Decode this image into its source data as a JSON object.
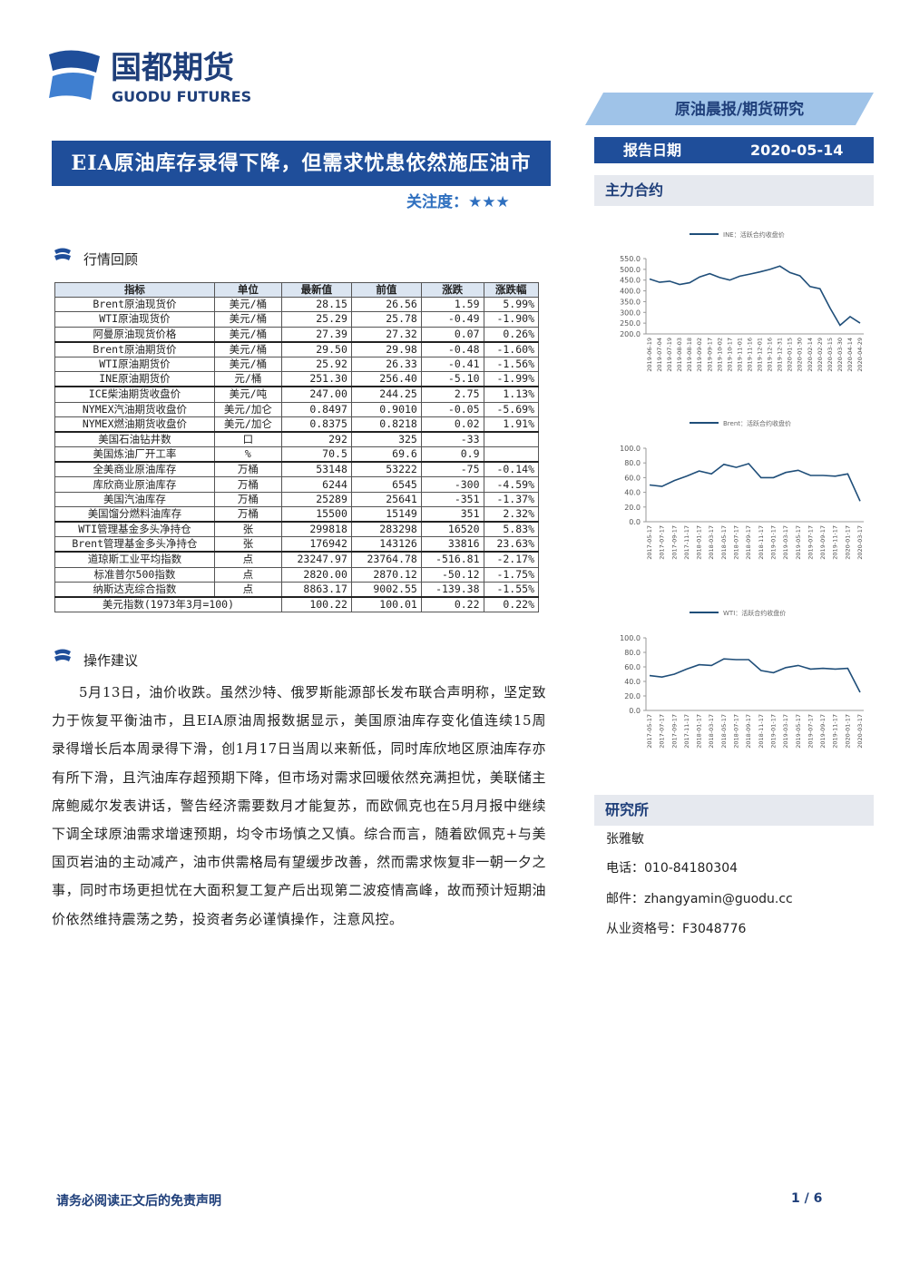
{
  "header": {
    "logo_cn": "国都期货",
    "logo_en": "GUODU FUTURES",
    "report_type": "原油晨报/期货研究",
    "date_label": "报告日期",
    "date": "2020-05-14"
  },
  "title": "EIA原油库存录得下降，但需求忧患依然施压油市",
  "attention": "关注度：★★★",
  "market_review": {
    "heading": "行情回顾",
    "table": {
      "columns": [
        "指标",
        "单位",
        "最新值",
        "前值",
        "涨跌",
        "涨跌幅"
      ],
      "rows": [
        [
          "Brent原油现货价",
          "美元/桶",
          "28.15",
          "26.56",
          "1.59",
          "5.99%"
        ],
        [
          "WTI原油现货价",
          "美元/桶",
          "25.29",
          "25.78",
          "-0.49",
          "-1.90%"
        ],
        [
          "阿曼原油现货价格",
          "美元/桶",
          "27.39",
          "27.32",
          "0.07",
          "0.26%"
        ],
        [
          "Brent原油期货价",
          "美元/桶",
          "29.50",
          "29.98",
          "-0.48",
          "-1.60%"
        ],
        [
          "WTI原油期货价",
          "美元/桶",
          "25.92",
          "26.33",
          "-0.41",
          "-1.56%"
        ],
        [
          "INE原油期货价",
          "元/桶",
          "251.30",
          "256.40",
          "-5.10",
          "-1.99%"
        ],
        [
          "ICE柴油期货收盘价",
          "美元/吨",
          "247.00",
          "244.25",
          "2.75",
          "1.13%"
        ],
        [
          "NYMEX汽油期货收盘价",
          "美元/加仑",
          "0.8497",
          "0.9010",
          "-0.05",
          "-5.69%"
        ],
        [
          "NYMEX燃油期货收盘价",
          "美元/加仑",
          "0.8375",
          "0.8218",
          "0.02",
          "1.91%"
        ],
        [
          "美国石油钻井数",
          "口",
          "292",
          "325",
          "-33",
          null
        ],
        [
          "美国炼油厂开工率",
          "%",
          "70.5",
          "69.6",
          "0.9",
          null
        ],
        [
          "全美商业原油库存",
          "万桶",
          "53148",
          "53222",
          "-75",
          "-0.14%"
        ],
        [
          "库欣商业原油库存",
          "万桶",
          "6244",
          "6545",
          "-300",
          "-4.59%"
        ],
        [
          "美国汽油库存",
          "万桶",
          "25289",
          "25641",
          "-351",
          "-1.37%"
        ],
        [
          "美国馏分燃料油库存",
          "万桶",
          "15500",
          "15149",
          "351",
          "2.32%"
        ],
        [
          "WTI管理基金多头净持仓",
          "张",
          "299818",
          "283298",
          "16520",
          "5.83%"
        ],
        [
          "Brent管理基金多头净持仓",
          "张",
          "176942",
          "143126",
          "33816",
          "23.63%"
        ],
        [
          "道琼斯工业平均指数",
          "点",
          "23247.97",
          "23764.78",
          "-516.81",
          "-2.17%"
        ],
        [
          "标准普尔500指数",
          "点",
          "2820.00",
          "2870.12",
          "-50.12",
          "-1.75%"
        ],
        [
          "纳斯达克综合指数",
          "点",
          "8863.17",
          "9002.55",
          "-139.38",
          "-1.55%"
        ],
        [
          "美元指数(1973年3月=100)",
          null,
          "100.22",
          "100.01",
          "0.22",
          "0.22%"
        ]
      ]
    }
  },
  "advice": {
    "heading": "操作建议",
    "paragraph": "5月13日，油价收跌。虽然沙特、俄罗斯能源部长发布联合声明称，坚定致力于恢复平衡油市，且EIA原油周报数据显示，美国原油库存变化值连续15周录得增长后本周录得下滑，创1月17日当周以来新低，同时库欣地区原油库存亦有所下滑，且汽油库存超预期下降，但市场对需求回暖依然充满担忧，美联储主席鲍威尔发表讲话，警告经济需要数月才能复苏，而欧佩克也在5月月报中继续下调全球原油需求增速预期，均令市场慎之又慎。综合而言，随着欧佩克+与美国页岩油的主动减产，油市供需格局有望缓步改善，然而需求恢复非一朝一夕之事，同时市场更担忧在大面积复工复产后出现第二波疫情高峰，故而预计短期油价依然维持震荡之势，投资者务必谨慎操作，注意风控。"
  },
  "sidebar": {
    "heading": "主力合约"
  },
  "chart_data": [
    {
      "type": "line",
      "categories": [
        "2019-06-19",
        "2019-07-04",
        "2019-07-19",
        "2019-08-03",
        "2019-08-18",
        "2019-09-02",
        "2019-09-17",
        "2019-10-02",
        "2019-10-17",
        "2019-11-01",
        "2019-11-16",
        "2019-12-01",
        "2019-12-16",
        "2019-12-31",
        "2020-01-15",
        "2020-01-30",
        "2020-02-14",
        "2020-02-29",
        "2020-03-15",
        "2020-03-30",
        "2020-04-14",
        "2020-04-29"
      ],
      "series": [
        {
          "name": "INE：活跃合约收盘价",
          "color": "#1f4e79",
          "values": [
            455,
            440,
            445,
            430,
            438,
            465,
            480,
            462,
            450,
            468,
            478,
            488,
            500,
            515,
            485,
            470,
            420,
            410,
            320,
            240,
            280,
            250
          ]
        }
      ],
      "ylim": [
        200,
        550
      ],
      "yticks": [
        {
          "value": 200,
          "label": "200.0"
        },
        {
          "value": 250,
          "label": "250.0"
        },
        {
          "value": 300,
          "label": "300.0"
        },
        {
          "value": 350,
          "label": "350.0"
        },
        {
          "value": 400,
          "label": "400.0"
        },
        {
          "value": 450,
          "label": "450.0"
        },
        {
          "value": 500,
          "label": "500.0"
        },
        {
          "value": 550,
          "label": "550.0"
        }
      ]
    },
    {
      "type": "line",
      "categories": [
        "2017-05-17",
        "2017-07-17",
        "2017-09-17",
        "2017-11-17",
        "2018-01-17",
        "2018-03-17",
        "2018-05-17",
        "2018-07-17",
        "2018-09-17",
        "2018-11-17",
        "2019-01-17",
        "2019-03-17",
        "2019-05-17",
        "2019-07-17",
        "2019-09-17",
        "2019-11-17",
        "2020-01-17",
        "2020-03-17"
      ],
      "series": [
        {
          "name": "Brent：活跃合约收盘价",
          "color": "#1f4e79",
          "values": [
            50,
            48,
            56,
            62,
            69,
            65,
            78,
            74,
            79,
            60,
            60,
            67,
            70,
            63,
            63,
            62,
            65,
            28
          ]
        }
      ],
      "ylim": [
        0,
        100
      ],
      "yticks": [
        {
          "value": 0,
          "label": "0.0"
        },
        {
          "value": 20,
          "label": "20.0"
        },
        {
          "value": 40,
          "label": "40.0"
        },
        {
          "value": 60,
          "label": "60.0"
        },
        {
          "value": 80,
          "label": "80.0"
        },
        {
          "value": 100,
          "label": "100.0"
        }
      ]
    },
    {
      "type": "line",
      "categories": [
        "2017-05-17",
        "2017-07-17",
        "2017-09-17",
        "2017-11-17",
        "2018-01-17",
        "2018-03-17",
        "2018-05-17",
        "2018-07-17",
        "2018-09-17",
        "2018-11-17",
        "2019-01-17",
        "2019-03-17",
        "2019-05-17",
        "2019-07-17",
        "2019-09-17",
        "2019-11-17",
        "2020-01-17",
        "2020-03-17"
      ],
      "series": [
        {
          "name": "WTI：活跃合约收盘价",
          "color": "#1f4e79",
          "values": [
            48,
            46,
            50,
            57,
            63,
            62,
            71,
            70,
            70,
            55,
            52,
            59,
            62,
            57,
            58,
            57,
            58,
            25
          ]
        }
      ],
      "ylim": [
        0,
        100
      ],
      "yticks": [
        {
          "value": 0,
          "label": "0.0"
        },
        {
          "value": 20,
          "label": "20.0"
        },
        {
          "value": 40,
          "label": "40.0"
        },
        {
          "value": 60,
          "label": "60.0"
        },
        {
          "value": 80,
          "label": "80.0"
        },
        {
          "value": 100,
          "label": "100.0"
        }
      ]
    }
  ],
  "research": {
    "heading": "研究所",
    "name": "张雅敏",
    "phone": "电话：010-84180304",
    "email": "邮件：zhangyamin@guodu.cc",
    "license": "从业资格号：F3048776"
  },
  "footer": {
    "disclaimer": "请务必阅读正文后的免责声明",
    "page": "1 / 6"
  }
}
